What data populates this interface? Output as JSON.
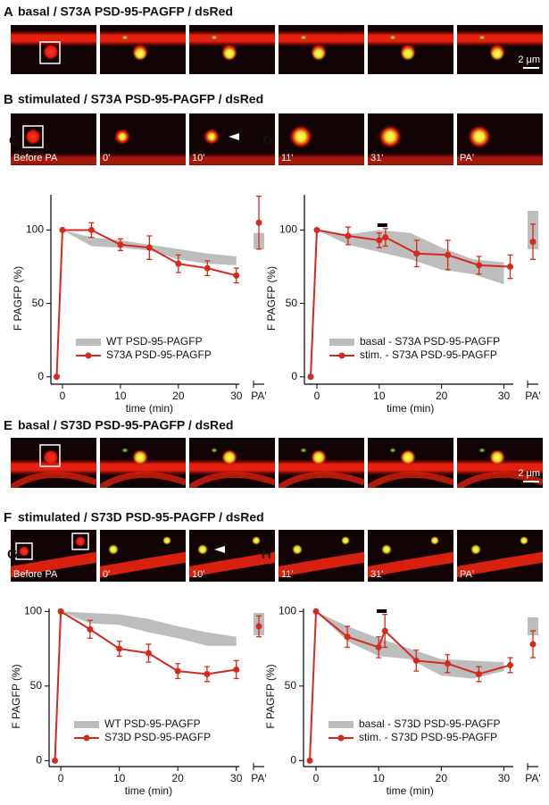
{
  "figure_rows": [
    {
      "letter": "A",
      "title": "basal / S73A PSD-95-PAGFP / dsRed",
      "scale_bar": "2 μm"
    },
    {
      "letter": "B",
      "title": "stimulated / S73A PSD-95-PAGFP / dsRed",
      "frame_labels": [
        "Before PA",
        "0'",
        "10'",
        "11'",
        "31'",
        "PA'"
      ]
    },
    {
      "letter": "E",
      "title": "basal / S73D PSD-95-PAGFP / dsRed",
      "scale_bar": "2 μm"
    },
    {
      "letter": "F",
      "title": "stimulated / S73D PSD-95-PAGFP / dsRed",
      "frame_labels": [
        "Before PA",
        "0'",
        "10'",
        "11'",
        "31'",
        "PA'"
      ]
    }
  ],
  "chart_data": [
    {
      "type": "line",
      "letter": "C",
      "xlabel": "time (min)",
      "ylabel": "F PAGFP (%)",
      "xlim": [
        -2,
        30.5
      ],
      "xticks": [
        0,
        10,
        20,
        30
      ],
      "ylim": [
        -5,
        124
      ],
      "yticks": [
        0,
        50,
        100
      ],
      "pa_label": "PA'",
      "legend": "lower-left",
      "series": [
        {
          "name": "WT PSD-95-PAGFP",
          "color": "#bdbdbd",
          "x": [
            0,
            5,
            10,
            15,
            20,
            25,
            30
          ],
          "lower": [
            100,
            89,
            88,
            86,
            80,
            77,
            76
          ],
          "upper": [
            100,
            95,
            93,
            90,
            87,
            84,
            82
          ],
          "pa_band": [
            87,
            98
          ]
        },
        {
          "name": "S73A PSD-95-PAGFP",
          "color": "#d42a1e",
          "x": [
            -1,
            0,
            5,
            10,
            15,
            20,
            25,
            30
          ],
          "values": [
            0,
            100,
            100,
            90,
            88,
            77,
            74,
            69
          ],
          "errors": [
            0,
            0,
            5,
            4,
            8,
            6,
            5,
            5
          ],
          "pa_value": 105,
          "pa_error": 18
        }
      ]
    },
    {
      "type": "line",
      "letter": "D",
      "xlabel": "time (min)",
      "ylabel": "F PAGFP (%)",
      "xlim": [
        -2,
        31.5
      ],
      "xticks": [
        0,
        10,
        20,
        30
      ],
      "ylim": [
        -5,
        124
      ],
      "yticks": [
        0,
        50,
        100
      ],
      "pa_label": "PA'",
      "legend": "lower-left",
      "stimulus": [
        10,
        11
      ],
      "series": [
        {
          "name": "basal - S73A PSD-95-PAGFP",
          "color": "#bdbdbd",
          "x": [
            0,
            5,
            10,
            15,
            20,
            25,
            30
          ],
          "lower": [
            100,
            90,
            85,
            80,
            73,
            70,
            63
          ],
          "upper": [
            100,
            97,
            100,
            98,
            88,
            80,
            78
          ],
          "pa_band": [
            87,
            113
          ]
        },
        {
          "name": "stim. - S73A PSD-95-PAGFP",
          "color": "#d42a1e",
          "x": [
            -1,
            0,
            5,
            10,
            11,
            16,
            21,
            26,
            31
          ],
          "values": [
            0,
            100,
            96,
            93,
            95,
            84,
            83,
            76,
            75
          ],
          "errors": [
            0,
            0,
            6,
            5,
            6,
            9,
            10,
            6,
            8
          ],
          "pa_value": 92,
          "pa_error": 12
        }
      ]
    },
    {
      "type": "line",
      "letter": "G",
      "xlabel": "time (min)",
      "ylabel": "F PAGFP (%)",
      "xlim": [
        -2,
        30.5
      ],
      "xticks": [
        0,
        10,
        20,
        30
      ],
      "ylim": [
        -4,
        102
      ],
      "yticks": [
        0,
        50,
        100
      ],
      "pa_label": "PA'",
      "legend": "lower-left",
      "series": [
        {
          "name": "WT PSD-95-PAGFP",
          "color": "#bdbdbd",
          "x": [
            0,
            5,
            10,
            15,
            20,
            25,
            30
          ],
          "lower": [
            100,
            92,
            91,
            86,
            82,
            77,
            77
          ],
          "upper": [
            100,
            99,
            98,
            95,
            90,
            86,
            83
          ],
          "pa_band": [
            84,
            99
          ]
        },
        {
          "name": "S73D PSD-95-PAGFP",
          "color": "#d42a1e",
          "x": [
            -1,
            0,
            5,
            10,
            15,
            20,
            25,
            30
          ],
          "values": [
            0,
            100,
            88,
            75,
            72,
            60,
            58,
            61
          ],
          "errors": [
            0,
            0,
            6,
            5,
            6,
            5,
            5,
            6
          ],
          "pa_value": 90,
          "pa_error": 7
        }
      ]
    },
    {
      "type": "line",
      "letter": "H",
      "xlabel": "time (min)",
      "ylabel": "F PAGFP (%)",
      "xlim": [
        -2,
        31.5
      ],
      "xticks": [
        0,
        10,
        20,
        30
      ],
      "ylim": [
        -4,
        102
      ],
      "yticks": [
        0,
        50,
        100
      ],
      "pa_label": "PA'",
      "legend": "lower-left",
      "stimulus": [
        10,
        11
      ],
      "series": [
        {
          "name": "basal - S73D PSD-95-PAGFP",
          "color": "#bdbdbd",
          "x": [
            0,
            5,
            10,
            15,
            20,
            25,
            30
          ],
          "lower": [
            100,
            80,
            70,
            68,
            57,
            55,
            60
          ],
          "upper": [
            100,
            90,
            82,
            75,
            68,
            67,
            66
          ],
          "pa_band": [
            84,
            96
          ]
        },
        {
          "name": "stim. - S73D PSD-95-PAGFP",
          "color": "#d42a1e",
          "x": [
            -1,
            0,
            5,
            10,
            11,
            16,
            21,
            26,
            31
          ],
          "values": [
            0,
            100,
            83,
            76,
            87,
            67,
            65,
            58,
            64
          ],
          "errors": [
            0,
            0,
            7,
            7,
            11,
            7,
            6,
            5,
            5
          ],
          "pa_value": 78,
          "pa_error": 9
        }
      ]
    }
  ]
}
